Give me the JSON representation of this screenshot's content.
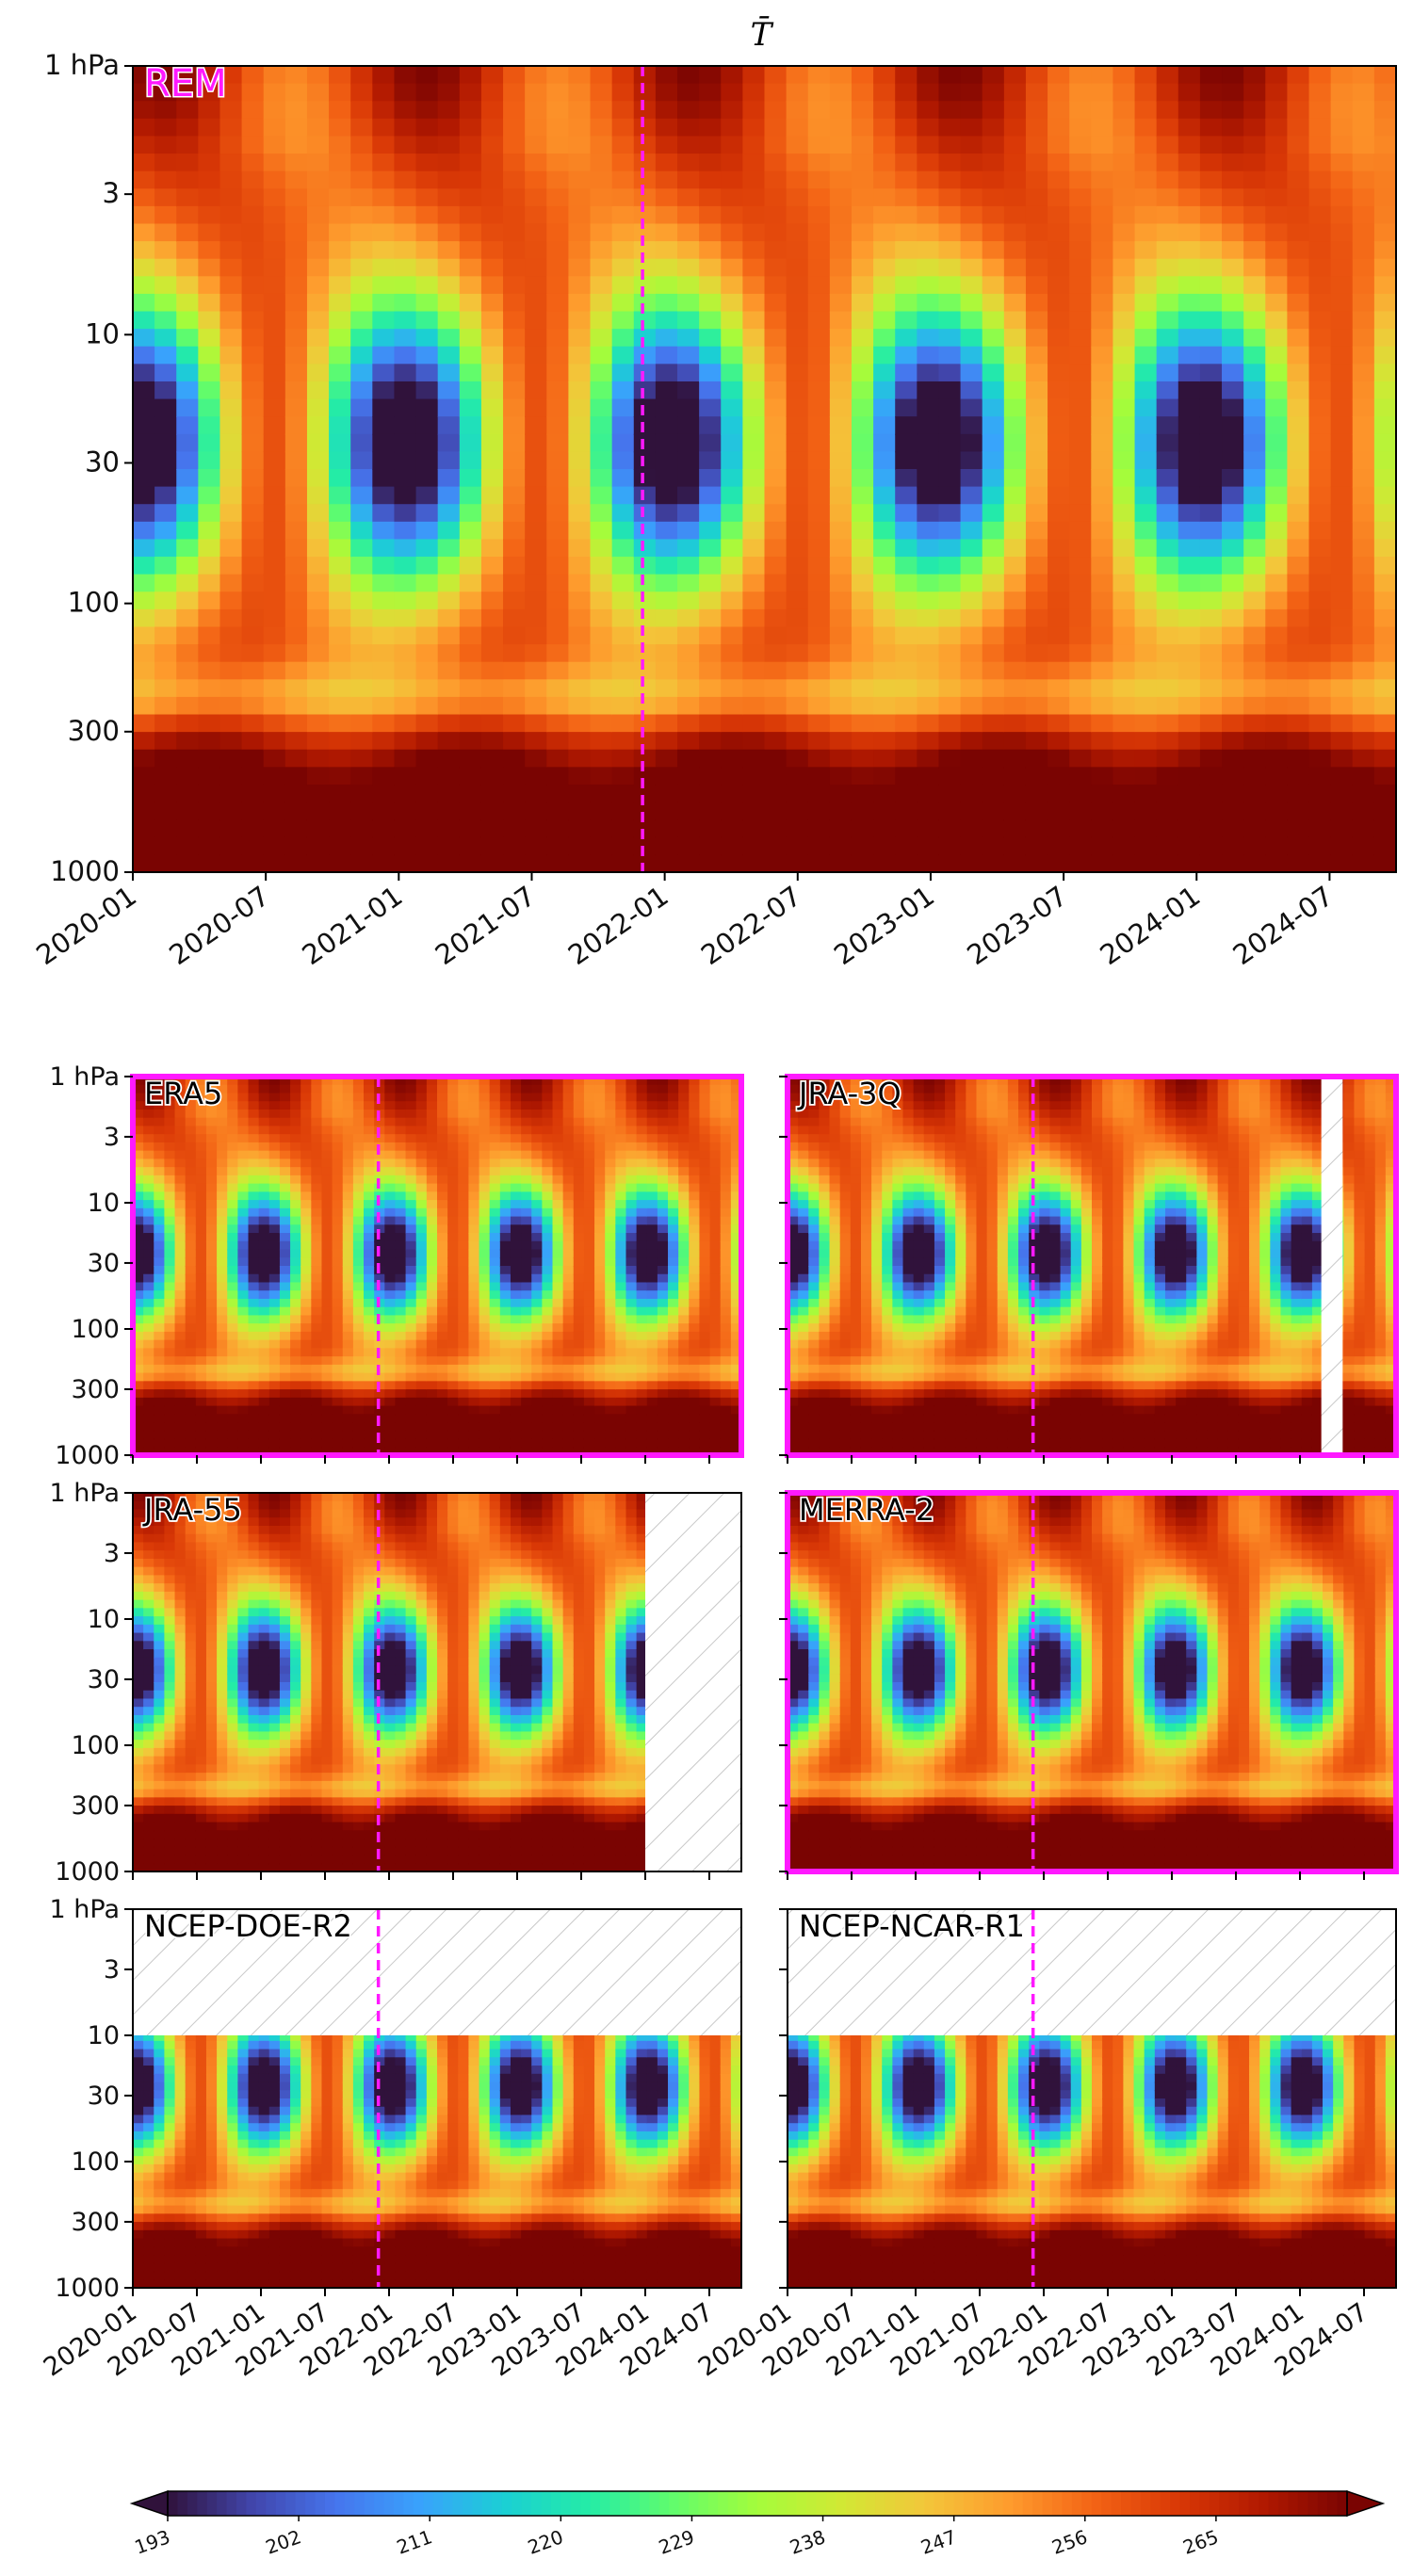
{
  "figure": {
    "title": "T̄",
    "main_label": "REM",
    "accent_color": "#ff19ff",
    "hatch_color": "#c8c8c8",
    "colormap": "turbo",
    "colorbar_ticks": [
      "193",
      "202",
      "211",
      "220",
      "229",
      "238",
      "247",
      "256",
      "265"
    ],
    "colorbar_range": [
      193,
      274
    ],
    "colorbar_extend": "both",
    "reference_date_dashed_line": "2021-12"
  },
  "chart_data": [
    {
      "type": "heatmap",
      "label": "REM",
      "x_range": [
        "2020-01",
        "2024-10"
      ],
      "x_ticks": [
        "2020-01",
        "2020-07",
        "2021-01",
        "2021-07",
        "2022-01",
        "2022-07",
        "2023-01",
        "2023-07",
        "2024-01",
        "2024-07"
      ],
      "y_scale": "log",
      "y_range_hpa": [
        1000,
        1
      ],
      "y_ticks": [
        "1 hPa",
        "3",
        "10",
        "30",
        "100",
        "300",
        "1000"
      ],
      "dashed_line_at": "2021-12",
      "highlight_border": false,
      "missing": []
    },
    {
      "type": "heatmap",
      "label": "ERA5",
      "x_range": [
        "2020-01",
        "2024-10"
      ],
      "y_scale": "log",
      "y_range_hpa": [
        1000,
        1
      ],
      "y_ticks": [
        "1 hPa",
        "3",
        "10",
        "30",
        "100",
        "300",
        "1000"
      ],
      "dashed_line_at": "2021-12",
      "highlight_border": true,
      "missing": []
    },
    {
      "type": "heatmap",
      "label": "JRA-3Q",
      "x_range": [
        "2020-01",
        "2024-10"
      ],
      "y_scale": "log",
      "y_range_hpa": [
        1000,
        1
      ],
      "dashed_line_at": "2021-12",
      "highlight_border": true,
      "missing": [
        {
          "from": "2024-03",
          "to": "2024-05",
          "p_top": 1,
          "p_bottom": 1000
        }
      ]
    },
    {
      "type": "heatmap",
      "label": "JRA-55",
      "x_range": [
        "2020-01",
        "2024-10"
      ],
      "y_scale": "log",
      "y_range_hpa": [
        1000,
        1
      ],
      "y_ticks": [
        "1 hPa",
        "3",
        "10",
        "30",
        "100",
        "300",
        "1000"
      ],
      "dashed_line_at": "2021-12",
      "highlight_border": false,
      "missing": [
        {
          "from": "2024-01",
          "to": "2024-10",
          "p_top": 1,
          "p_bottom": 1000
        }
      ]
    },
    {
      "type": "heatmap",
      "label": "MERRA-2",
      "x_range": [
        "2020-01",
        "2024-10"
      ],
      "y_scale": "log",
      "y_range_hpa": [
        1000,
        1
      ],
      "dashed_line_at": "2021-12",
      "highlight_border": true,
      "missing": []
    },
    {
      "type": "heatmap",
      "label": "NCEP-DOE-R2",
      "x_range": [
        "2020-01",
        "2024-10"
      ],
      "x_ticks": [
        "2020-01",
        "2020-07",
        "2021-01",
        "2021-07",
        "2022-01",
        "2022-07",
        "2023-01",
        "2023-07",
        "2024-01",
        "2024-07"
      ],
      "y_scale": "log",
      "y_range_hpa": [
        1000,
        1
      ],
      "y_ticks": [
        "1 hPa",
        "3",
        "10",
        "30",
        "100",
        "300",
        "1000"
      ],
      "dashed_line_at": "2021-12",
      "highlight_border": false,
      "missing": [
        {
          "from": "2020-01",
          "to": "2024-10",
          "p_top": 1,
          "p_bottom": 10
        }
      ]
    },
    {
      "type": "heatmap",
      "label": "NCEP-NCAR-R1",
      "x_range": [
        "2020-01",
        "2024-10"
      ],
      "x_ticks": [
        "2020-01",
        "2020-07",
        "2021-01",
        "2021-07",
        "2022-01",
        "2022-07",
        "2023-01",
        "2023-07",
        "2024-01",
        "2024-07"
      ],
      "y_scale": "log",
      "y_range_hpa": [
        1000,
        1
      ],
      "dashed_line_at": "2021-12",
      "highlight_border": false,
      "missing": [
        {
          "from": "2020-01",
          "to": "2024-10",
          "p_top": 1,
          "p_bottom": 10
        }
      ]
    }
  ]
}
